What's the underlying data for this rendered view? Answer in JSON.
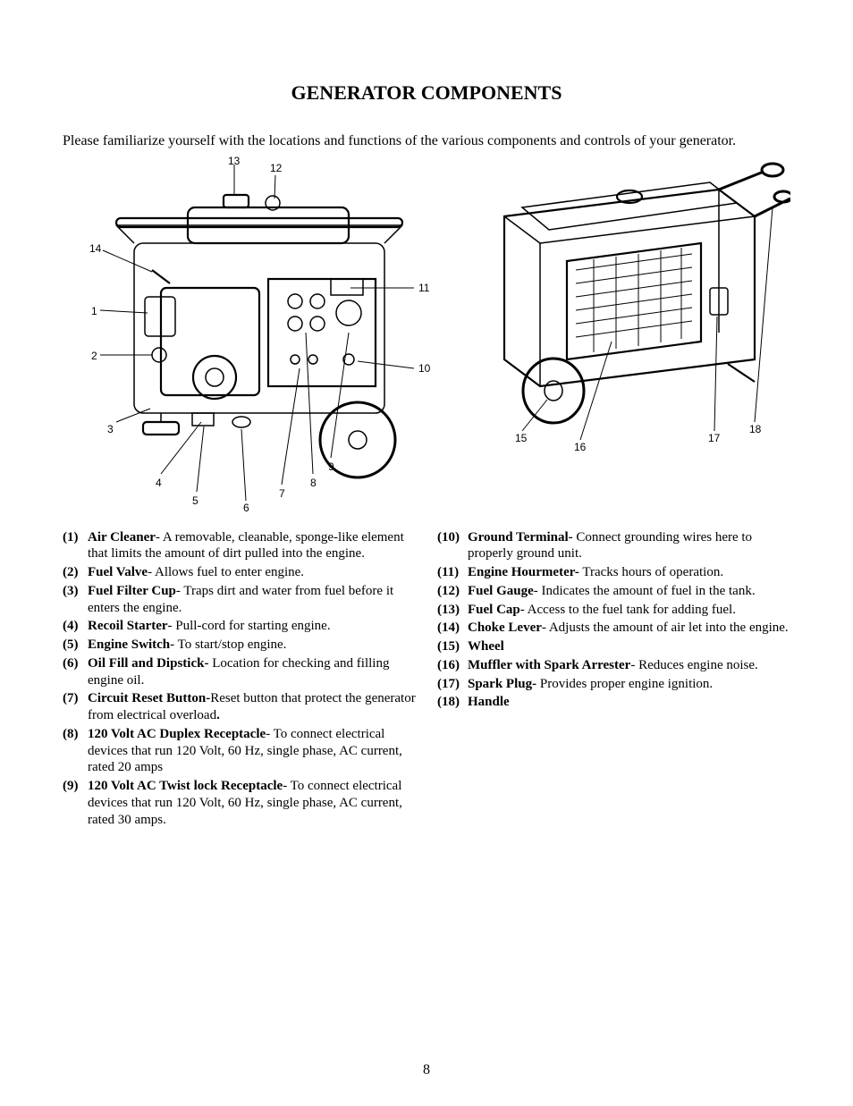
{
  "page": {
    "title": "GENERATOR COMPONENTS",
    "intro": "Please familiarize yourself with the locations and functions of the various components and controls of your generator.",
    "page_number": "8"
  },
  "figure_left": {
    "callouts": {
      "n1": "1",
      "n2": "2",
      "n3": "3",
      "n4": "4",
      "n5": "5",
      "n6": "6",
      "n7": "7",
      "n8": "8",
      "n9": "9",
      "n10": "10",
      "n11": "11",
      "n12": "12",
      "n13": "13",
      "n14": "14"
    }
  },
  "figure_right": {
    "callouts": {
      "n15": "15",
      "n16": "16",
      "n17": "17",
      "n18": "18"
    }
  },
  "items_left": [
    {
      "num": "(1)",
      "name": "Air Cleaner",
      "desc": "- A removable, cleanable, sponge-like element that limits the amount of dirt pulled into the engine."
    },
    {
      "num": "(2)",
      "name": "Fuel Valve",
      "desc": "- Allows fuel to enter engine."
    },
    {
      "num": "(3)",
      "name": "Fuel Filter Cup",
      "desc": "- Traps dirt and water from fuel before it enters the engine."
    },
    {
      "num": "(4)",
      "name": "Recoil Starter",
      "desc": "- Pull-cord for starting engine."
    },
    {
      "num": "(5)",
      "name": "Engine Switch",
      "desc": "- To start/stop engine."
    },
    {
      "num": "(6)",
      "name": "Oil Fill and Dipstick-",
      "desc": " Location for checking and filling engine oil."
    },
    {
      "num": "(7)",
      "name": "Circuit Reset Button-",
      "desc": "Reset button that protect the generator from electrical overload",
      "trail_bold": "."
    },
    {
      "num": "(8)",
      "name": "120 Volt AC Duplex Receptacle",
      "desc": "- To connect electrical devices that run 120 Volt, 60 Hz, single phase, AC current, rated 20 amps"
    },
    {
      "num": "(9)",
      "name": "120 Volt AC Twist lock Receptacle",
      "desc": "- To connect electrical devices that run 120 Volt, 60 Hz, single phase, AC current, rated 30 amps."
    }
  ],
  "items_right": [
    {
      "num": "(10)",
      "name": "Ground Terminal-",
      "desc": " Connect grounding wires here to properly ground unit."
    },
    {
      "num": "(11)",
      "name": "Engine Hourmeter-",
      "desc": " Tracks hours of operation."
    },
    {
      "num": "(12)",
      "name": "Fuel Gauge",
      "desc": "- Indicates the amount of fuel in the tank."
    },
    {
      "num": "(13)",
      "name": "Fuel Cap",
      "desc": "- Access to the fuel tank for adding fuel."
    },
    {
      "num": "(14)",
      "name": "Choke Lever",
      "desc": "- Adjusts the amount of air let into the engine."
    },
    {
      "num": "(15)",
      "name": "Wheel",
      "desc": ""
    },
    {
      "num": "(16)",
      "name": "Muffler with Spark Arrester",
      "desc": "- Reduces engine noise."
    },
    {
      "num": "(17)",
      "name": "Spark Plug-",
      "desc": " Provides proper engine ignition."
    },
    {
      "num": "(18)",
      "name": "Handle",
      "desc": ""
    }
  ],
  "style": {
    "stroke": "#000000",
    "fill": "#ffffff",
    "thin": 1.2,
    "thick": 2.2,
    "font_callout": 12
  }
}
